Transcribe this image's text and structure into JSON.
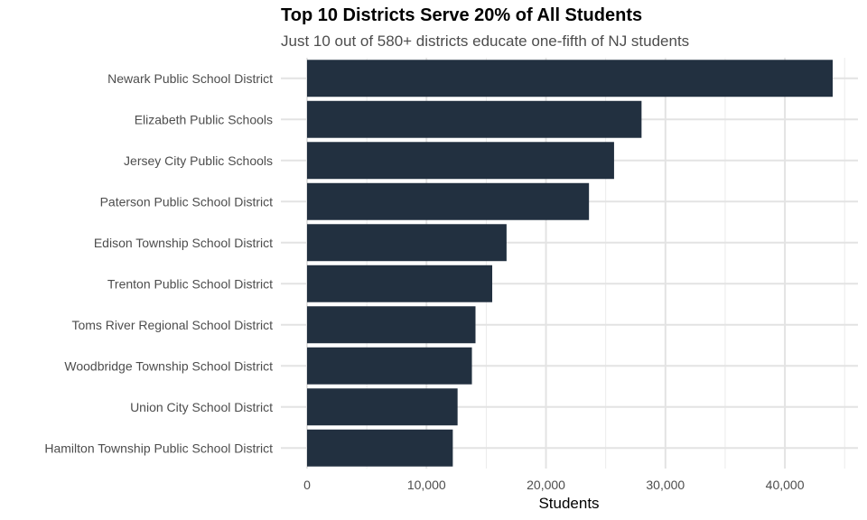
{
  "chart_data": {
    "type": "bar",
    "orientation": "horizontal",
    "title": "Top 10 Districts Serve 20% of All Students",
    "subtitle": "Just 10 out of 580+ districts educate one-fifth of NJ students",
    "xlabel": "Students",
    "ylabel": "",
    "xlim": [
      0,
      46000
    ],
    "x_ticks": [
      0,
      10000,
      20000,
      30000,
      40000
    ],
    "x_tick_labels": [
      "0",
      "10,000",
      "20,000",
      "30,000",
      "40,000"
    ],
    "grid": true,
    "legend": "none",
    "bar_color": "#223040",
    "categories": [
      "Newark Public School District",
      "Elizabeth Public Schools",
      "Jersey City Public Schools",
      "Paterson Public School District",
      "Edison Township School District",
      "Trenton Public School District",
      "Toms River Regional School District",
      "Woodbridge Township School District",
      "Union City School District",
      "Hamilton Township Public School District"
    ],
    "values": [
      44000,
      28000,
      25700,
      23600,
      16700,
      15500,
      14100,
      13800,
      12600,
      12200
    ]
  }
}
